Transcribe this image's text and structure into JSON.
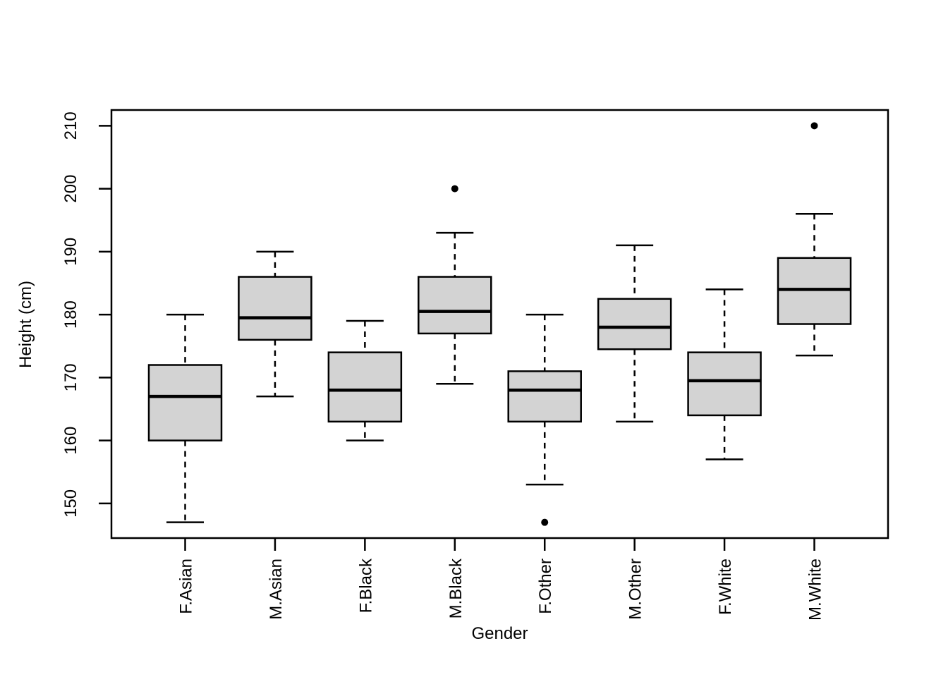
{
  "chart_data": {
    "type": "boxplot",
    "title": "",
    "xlabel": "Gender",
    "ylabel": "Height (cm)",
    "ylim": [
      144.5,
      212.5
    ],
    "yticks": [
      150,
      160,
      170,
      180,
      190,
      200,
      210
    ],
    "grid": false,
    "legend": "none",
    "box_fill": "#D3D3D3",
    "line_color": "#000000",
    "background": "#FFFFFF",
    "categories": [
      "F.Asian",
      "M.Asian",
      "F.Black",
      "M.Black",
      "F.Other",
      "M.Other",
      "F.White",
      "M.White"
    ],
    "groups": [
      {
        "label": "F.Asian",
        "whisker_low": 147,
        "q1": 160,
        "median": 167,
        "q3": 172,
        "whisker_high": 180,
        "outliers": []
      },
      {
        "label": "M.Asian",
        "whisker_low": 167,
        "q1": 176,
        "median": 179.5,
        "q3": 186,
        "whisker_high": 190,
        "outliers": []
      },
      {
        "label": "F.Black",
        "whisker_low": 160,
        "q1": 163,
        "median": 168,
        "q3": 174,
        "whisker_high": 179,
        "outliers": []
      },
      {
        "label": "M.Black",
        "whisker_low": 169,
        "q1": 177,
        "median": 180.5,
        "q3": 186,
        "whisker_high": 193,
        "outliers": [
          200
        ]
      },
      {
        "label": "F.Other",
        "whisker_low": 153,
        "q1": 163,
        "median": 168,
        "q3": 171,
        "whisker_high": 180,
        "outliers": [
          147
        ]
      },
      {
        "label": "M.Other",
        "whisker_low": 163,
        "q1": 174.5,
        "median": 178,
        "q3": 182.5,
        "whisker_high": 191,
        "outliers": []
      },
      {
        "label": "F.White",
        "whisker_low": 157,
        "q1": 164,
        "median": 169.5,
        "q3": 174,
        "whisker_high": 184,
        "outliers": []
      },
      {
        "label": "M.White",
        "whisker_low": 173.5,
        "q1": 178.5,
        "median": 184,
        "q3": 189,
        "whisker_high": 196,
        "outliers": [
          210
        ]
      }
    ]
  }
}
